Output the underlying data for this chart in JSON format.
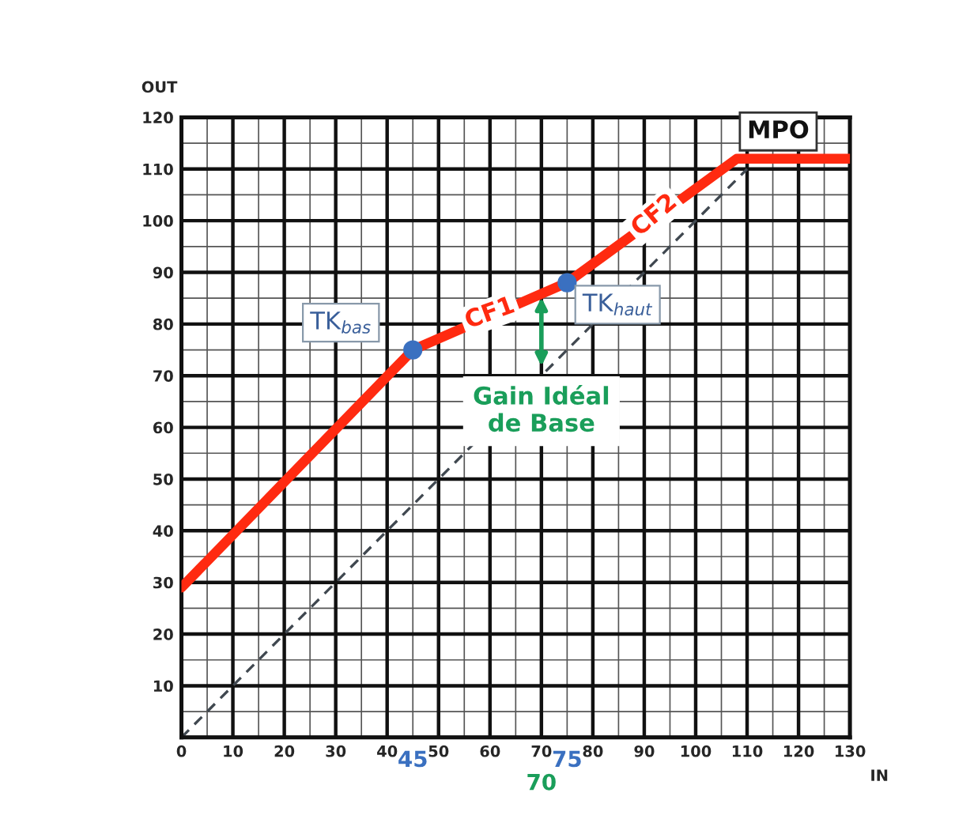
{
  "chart_data": {
    "type": "line",
    "xlabel": "IN",
    "ylabel": "OUT",
    "xlim": [
      0,
      130
    ],
    "ylim": [
      0,
      120
    ],
    "xticks": [
      0,
      10,
      20,
      30,
      40,
      50,
      60,
      70,
      80,
      90,
      100,
      110,
      120,
      130
    ],
    "yticks": [
      {
        "value": 0,
        "label": null
      },
      10,
      20,
      30,
      40,
      50,
      60,
      70,
      80,
      90,
      100,
      110,
      120
    ],
    "grid": true,
    "legend": false,
    "series": [
      {
        "color": "#ff2a10",
        "x": [
          0,
          45,
          75,
          108,
          130
        ],
        "values": [
          29,
          75,
          88,
          112,
          112
        ]
      },
      {
        "color": "#404850",
        "line_style": "dashed",
        "x": [
          0,
          110
        ],
        "values": [
          0,
          110
        ]
      },
      {
        "type": "scatter",
        "color": "#3a70c0",
        "marker": "circle",
        "x": [
          45,
          75
        ],
        "values": [
          75,
          88
        ]
      }
    ],
    "annotations": [
      {
        "text": "TK$_{bas}$",
        "x": 45,
        "y": 75
      },
      {
        "text": "TK$_{haut}$",
        "x": 75,
        "y": 88
      },
      {
        "text": "CF1",
        "x": 60,
        "y": 82
      },
      {
        "text": "CF2",
        "x": 92,
        "y": 101
      },
      {
        "text": "MPO",
        "x": 110,
        "y": 112
      },
      {
        "text": "Gain Idéal\nde Base",
        "x": 70,
        "y": 71
      },
      "45",
      "75",
      "70"
    ]
  }
}
